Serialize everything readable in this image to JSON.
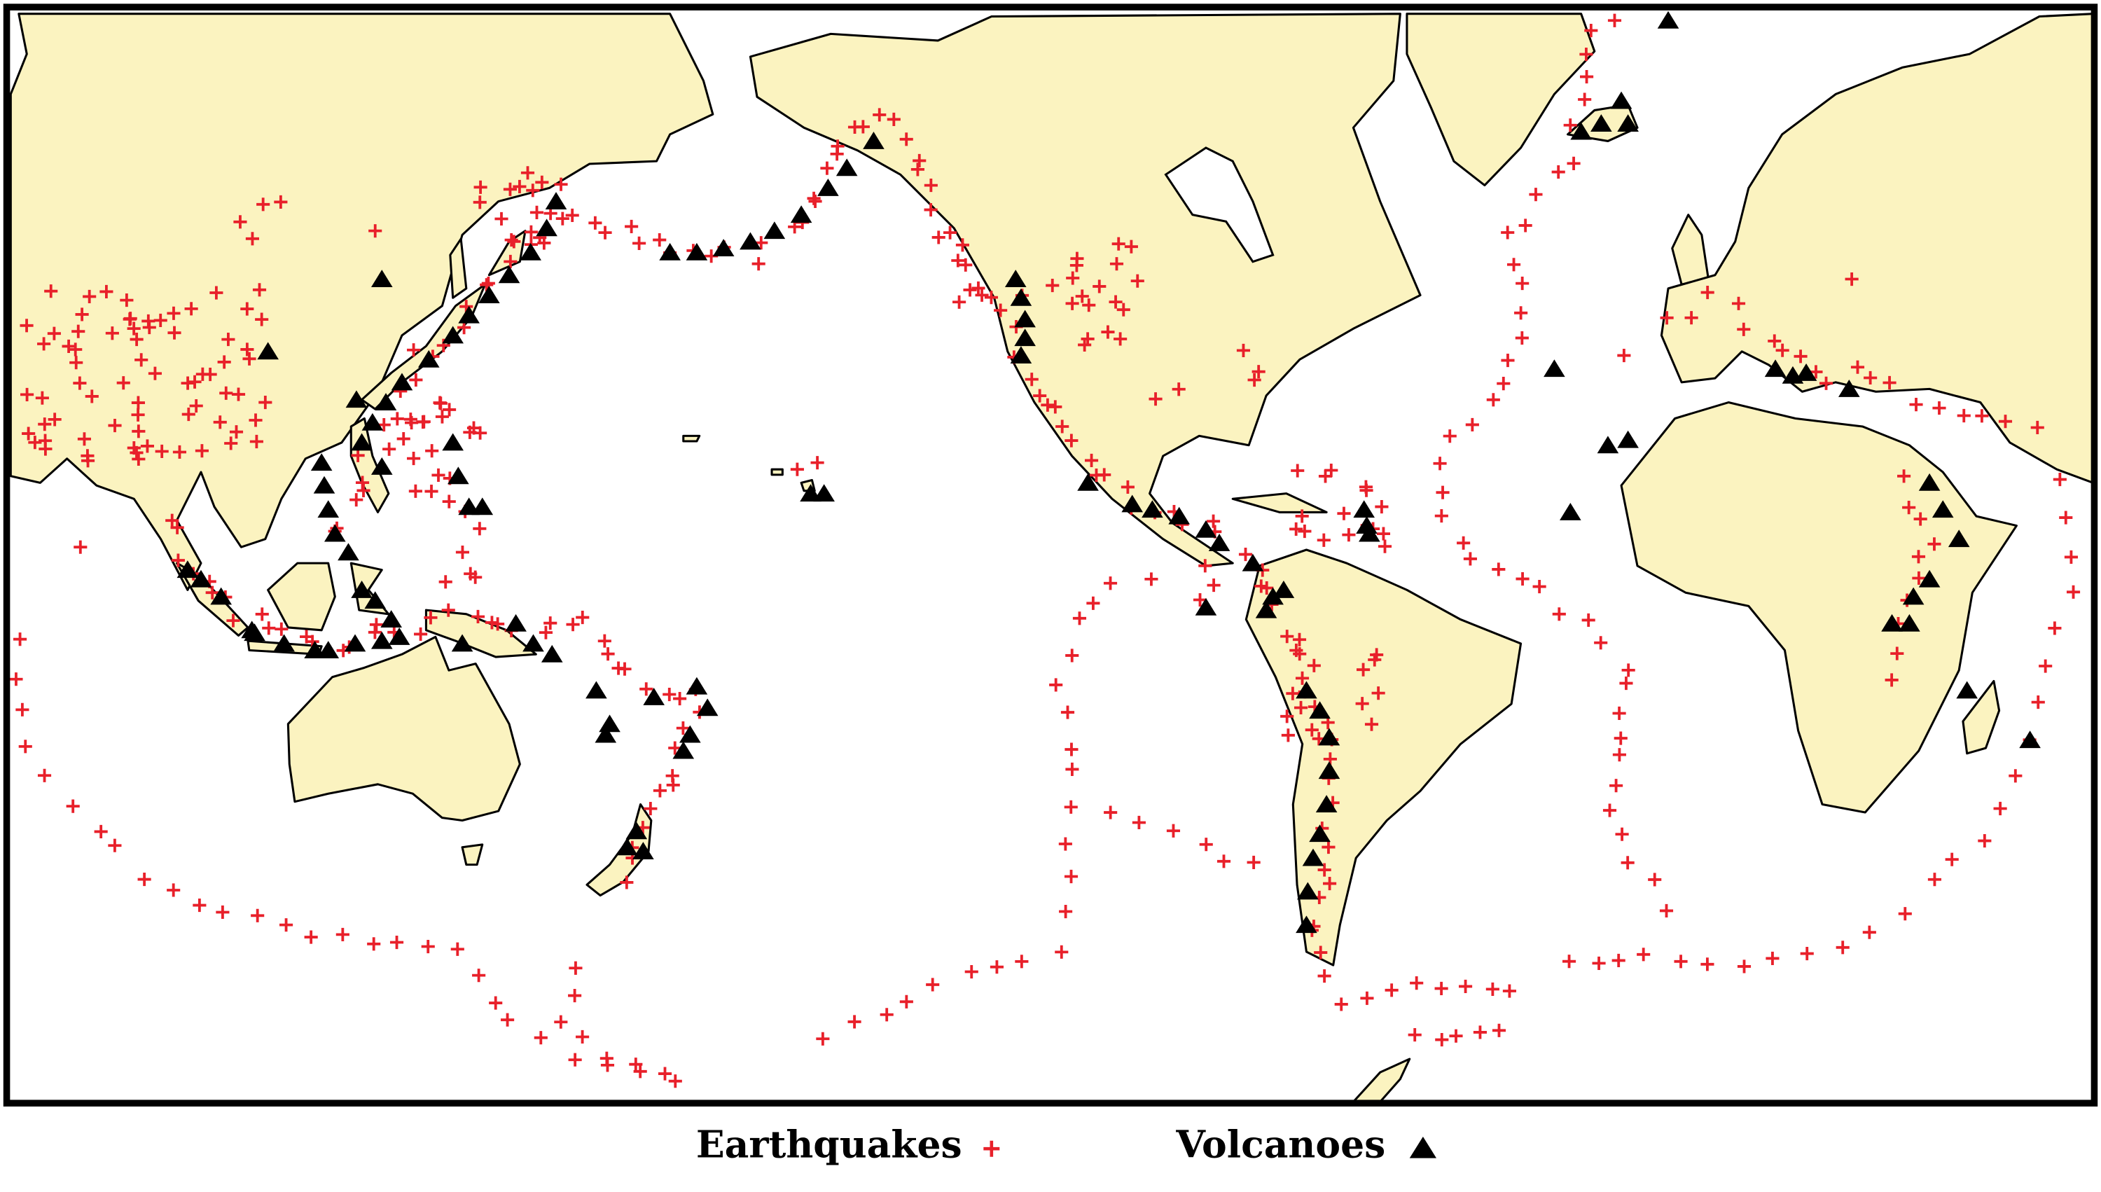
{
  "legend": {
    "earthquakes": "Earthquakes",
    "volcanoes": "Volcanoes"
  }
}
